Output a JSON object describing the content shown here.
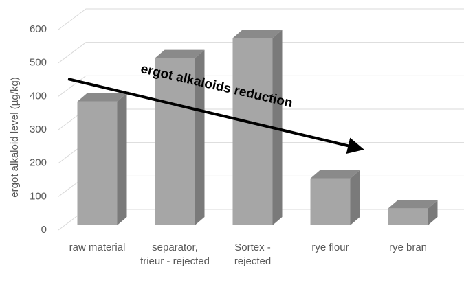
{
  "chart_data": {
    "type": "bar3d",
    "y_label": "ergot alkaloid level (µg/kg)",
    "categories": [
      "raw material",
      "separator, trieur - rejected",
      "Sortex - rejected",
      "rye flour",
      "rye bran"
    ],
    "values": [
      370,
      500,
      560,
      140,
      50
    ],
    "color": "#a6a6a6",
    "ylim": [
      0,
      600
    ],
    "yticks": [
      0,
      100,
      200,
      300,
      400,
      500,
      600
    ],
    "grid": true,
    "annotation": "ergot alkaloids reduction"
  }
}
